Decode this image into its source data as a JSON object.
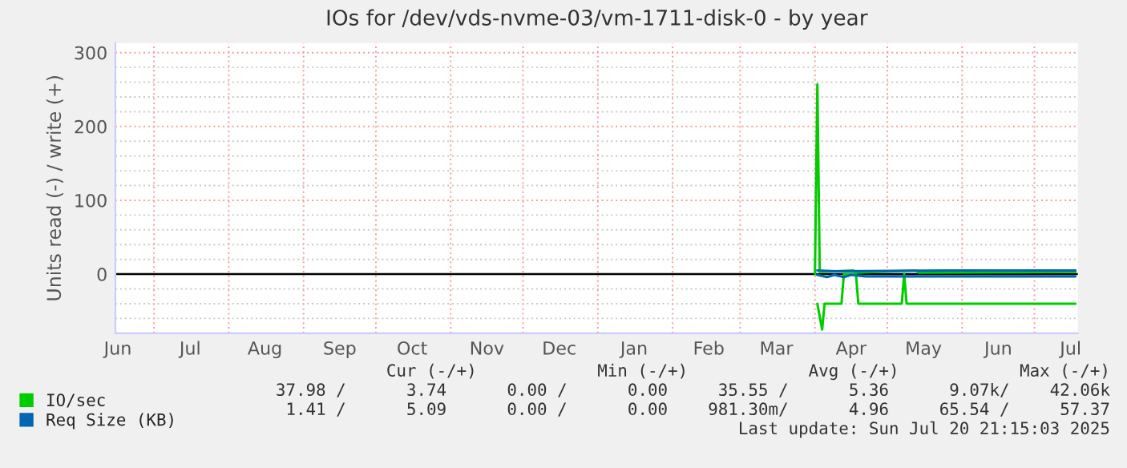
{
  "chart_data": {
    "type": "line",
    "title": "IOs for /dev/vds-nvme-03/vm-1711-disk-0 - by year",
    "ylabel": "Units read (-) / write (+)",
    "xlim": [
      "2024-06-15",
      "2025-07-19"
    ],
    "xticks": [
      {
        "value": "2024-06-16",
        "label": "Jun"
      },
      {
        "value": "2024-07-01",
        "label": null
      },
      {
        "value": "2024-07-16",
        "label": "Jul"
      },
      {
        "value": "2024-08-01",
        "label": null
      },
      {
        "value": "2024-08-16",
        "label": "Aug"
      },
      {
        "value": "2024-09-01",
        "label": null
      },
      {
        "value": "2024-09-16",
        "label": "Sep"
      },
      {
        "value": "2024-10-01",
        "label": null
      },
      {
        "value": "2024-10-16",
        "label": "Oct"
      },
      {
        "value": "2024-11-01",
        "label": null
      },
      {
        "value": "2024-11-16",
        "label": "Nov"
      },
      {
        "value": "2024-12-01",
        "label": null
      },
      {
        "value": "2024-12-16",
        "label": "Dec"
      },
      {
        "value": "2025-01-01",
        "label": null
      },
      {
        "value": "2025-01-16",
        "label": "Jan"
      },
      {
        "value": "2025-02-01",
        "label": null
      },
      {
        "value": "2025-02-16",
        "label": "Feb"
      },
      {
        "value": "2025-03-01",
        "label": null
      },
      {
        "value": "2025-03-16",
        "label": "Mar"
      },
      {
        "value": "2025-04-01",
        "label": null
      },
      {
        "value": "2025-04-16",
        "label": "Apr"
      },
      {
        "value": "2025-05-01",
        "label": null
      },
      {
        "value": "2025-05-16",
        "label": "May"
      },
      {
        "value": "2025-06-01",
        "label": null
      },
      {
        "value": "2025-06-16",
        "label": "Jun"
      },
      {
        "value": "2025-07-01",
        "label": null
      },
      {
        "value": "2025-07-16",
        "label": "Jul"
      }
    ],
    "ylim": [
      -80,
      313
    ],
    "yticks": [
      {
        "value": -60,
        "label": null
      },
      {
        "value": -40,
        "label": null
      },
      {
        "value": -20,
        "label": null
      },
      0,
      {
        "value": 20,
        "label": null
      },
      {
        "value": 40,
        "label": null
      },
      {
        "value": 60,
        "label": null
      },
      {
        "value": 80,
        "label": null
      },
      100,
      {
        "value": 120,
        "label": null
      },
      {
        "value": 140,
        "label": null
      },
      {
        "value": 160,
        "label": null
      },
      {
        "value": 180,
        "label": null
      },
      200,
      {
        "value": 220,
        "label": null
      },
      {
        "value": 240,
        "label": null
      },
      {
        "value": 260,
        "label": null
      },
      {
        "value": 280,
        "label": null
      },
      300
    ],
    "grid": true,
    "line_style": "solid",
    "legend": "bottom left",
    "ref_lines": [
      {
        "axis": "y",
        "value": 0,
        "color": "#000000"
      }
    ],
    "series": [
      {
        "name": "IO/sec",
        "color": "#00cc00",
        "x": [
          "2025-04-01",
          "2025-04-02",
          "2025-04-03",
          "2025-04-17",
          "2025-04-18",
          "2025-05-13",
          "2025-05-14",
          "2025-07-18"
        ],
        "values": [
          0,
          257,
          3,
          5,
          2,
          5,
          2,
          3
        ]
      },
      {
        "color": "#00cc00",
        "x": [
          "2025-04-02",
          "2025-04-04",
          "2025-04-05",
          "2025-04-12",
          "2025-04-13",
          "2025-04-18",
          "2025-04-19",
          "2025-05-07",
          "2025-05-08",
          "2025-05-09",
          "2025-07-18"
        ],
        "values": [
          -40,
          -75,
          -40,
          -40,
          0,
          0,
          -40,
          -40,
          0,
          -40,
          -40
        ]
      },
      {
        "name": "Req Size (KB)",
        "color": "#0066b3",
        "x": [
          "2025-04-02",
          "2025-04-10",
          "2025-05-26",
          "2025-07-18"
        ],
        "values": [
          5,
          4,
          5,
          5
        ]
      },
      {
        "color": "#0066b3",
        "x": [
          "2025-04-02",
          "2025-04-06",
          "2025-04-09",
          "2025-04-13",
          "2025-04-16",
          "2025-04-22",
          "2025-05-26",
          "2025-07-18"
        ],
        "values": [
          -1,
          -4,
          -1,
          -4,
          -1,
          -3,
          -3,
          -3
        ]
      }
    ],
    "annotations": [
      "      Cur (-/+)            Min (-/+)            Avg (-/+)            Max (-/+)",
      "37.98 /      3.74      0.00 /      0.00     35.55 /      5.36      9.07k/    42.06k",
      " 1.41 /      5.09      0.00 /      0.00    981.30m/      4.96     65.54 /     57.37",
      "Last update: Sun Jul 20 21:15:03 2025"
    ]
  }
}
